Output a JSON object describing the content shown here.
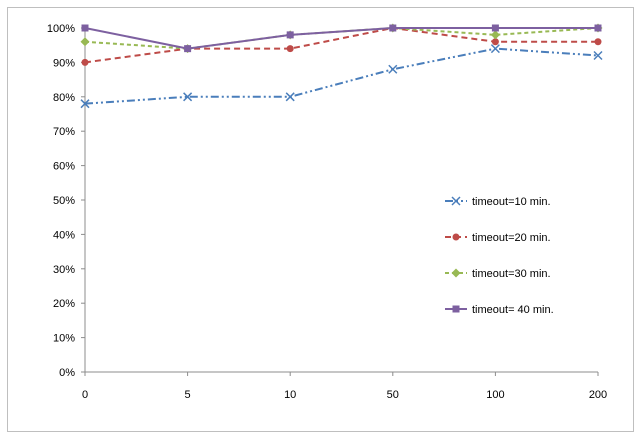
{
  "chart_data": {
    "type": "line",
    "title": "",
    "xlabel": "",
    "ylabel": "",
    "categories": [
      "0",
      "5",
      "10",
      "50",
      "100",
      "200"
    ],
    "y_ticks": [
      "0%",
      "10%",
      "20%",
      "30%",
      "40%",
      "50%",
      "60%",
      "70%",
      "80%",
      "90%",
      "100%"
    ],
    "ylim": [
      0,
      100
    ],
    "grid": false,
    "legend_position": "right",
    "series": [
      {
        "name": "timeout=10 min.",
        "values": [
          78,
          80,
          80,
          88,
          94,
          92
        ],
        "color": "#4a7ebb",
        "marker": "x",
        "dash": "dash-dot-dot"
      },
      {
        "name": "timeout=20 min.",
        "values": [
          90,
          94,
          94,
          100,
          96,
          96
        ],
        "color": "#be4b48",
        "marker": "circle",
        "dash": "dash"
      },
      {
        "name": "timeout=30 min.",
        "values": [
          96,
          94,
          98,
          100,
          98,
          100
        ],
        "color": "#98b954",
        "marker": "diamond",
        "dash": "short-dash"
      },
      {
        "name": "timeout= 40 min.",
        "values": [
          100,
          94,
          98,
          100,
          100,
          100
        ],
        "color": "#7d60a0",
        "marker": "square",
        "dash": "solid"
      }
    ]
  }
}
